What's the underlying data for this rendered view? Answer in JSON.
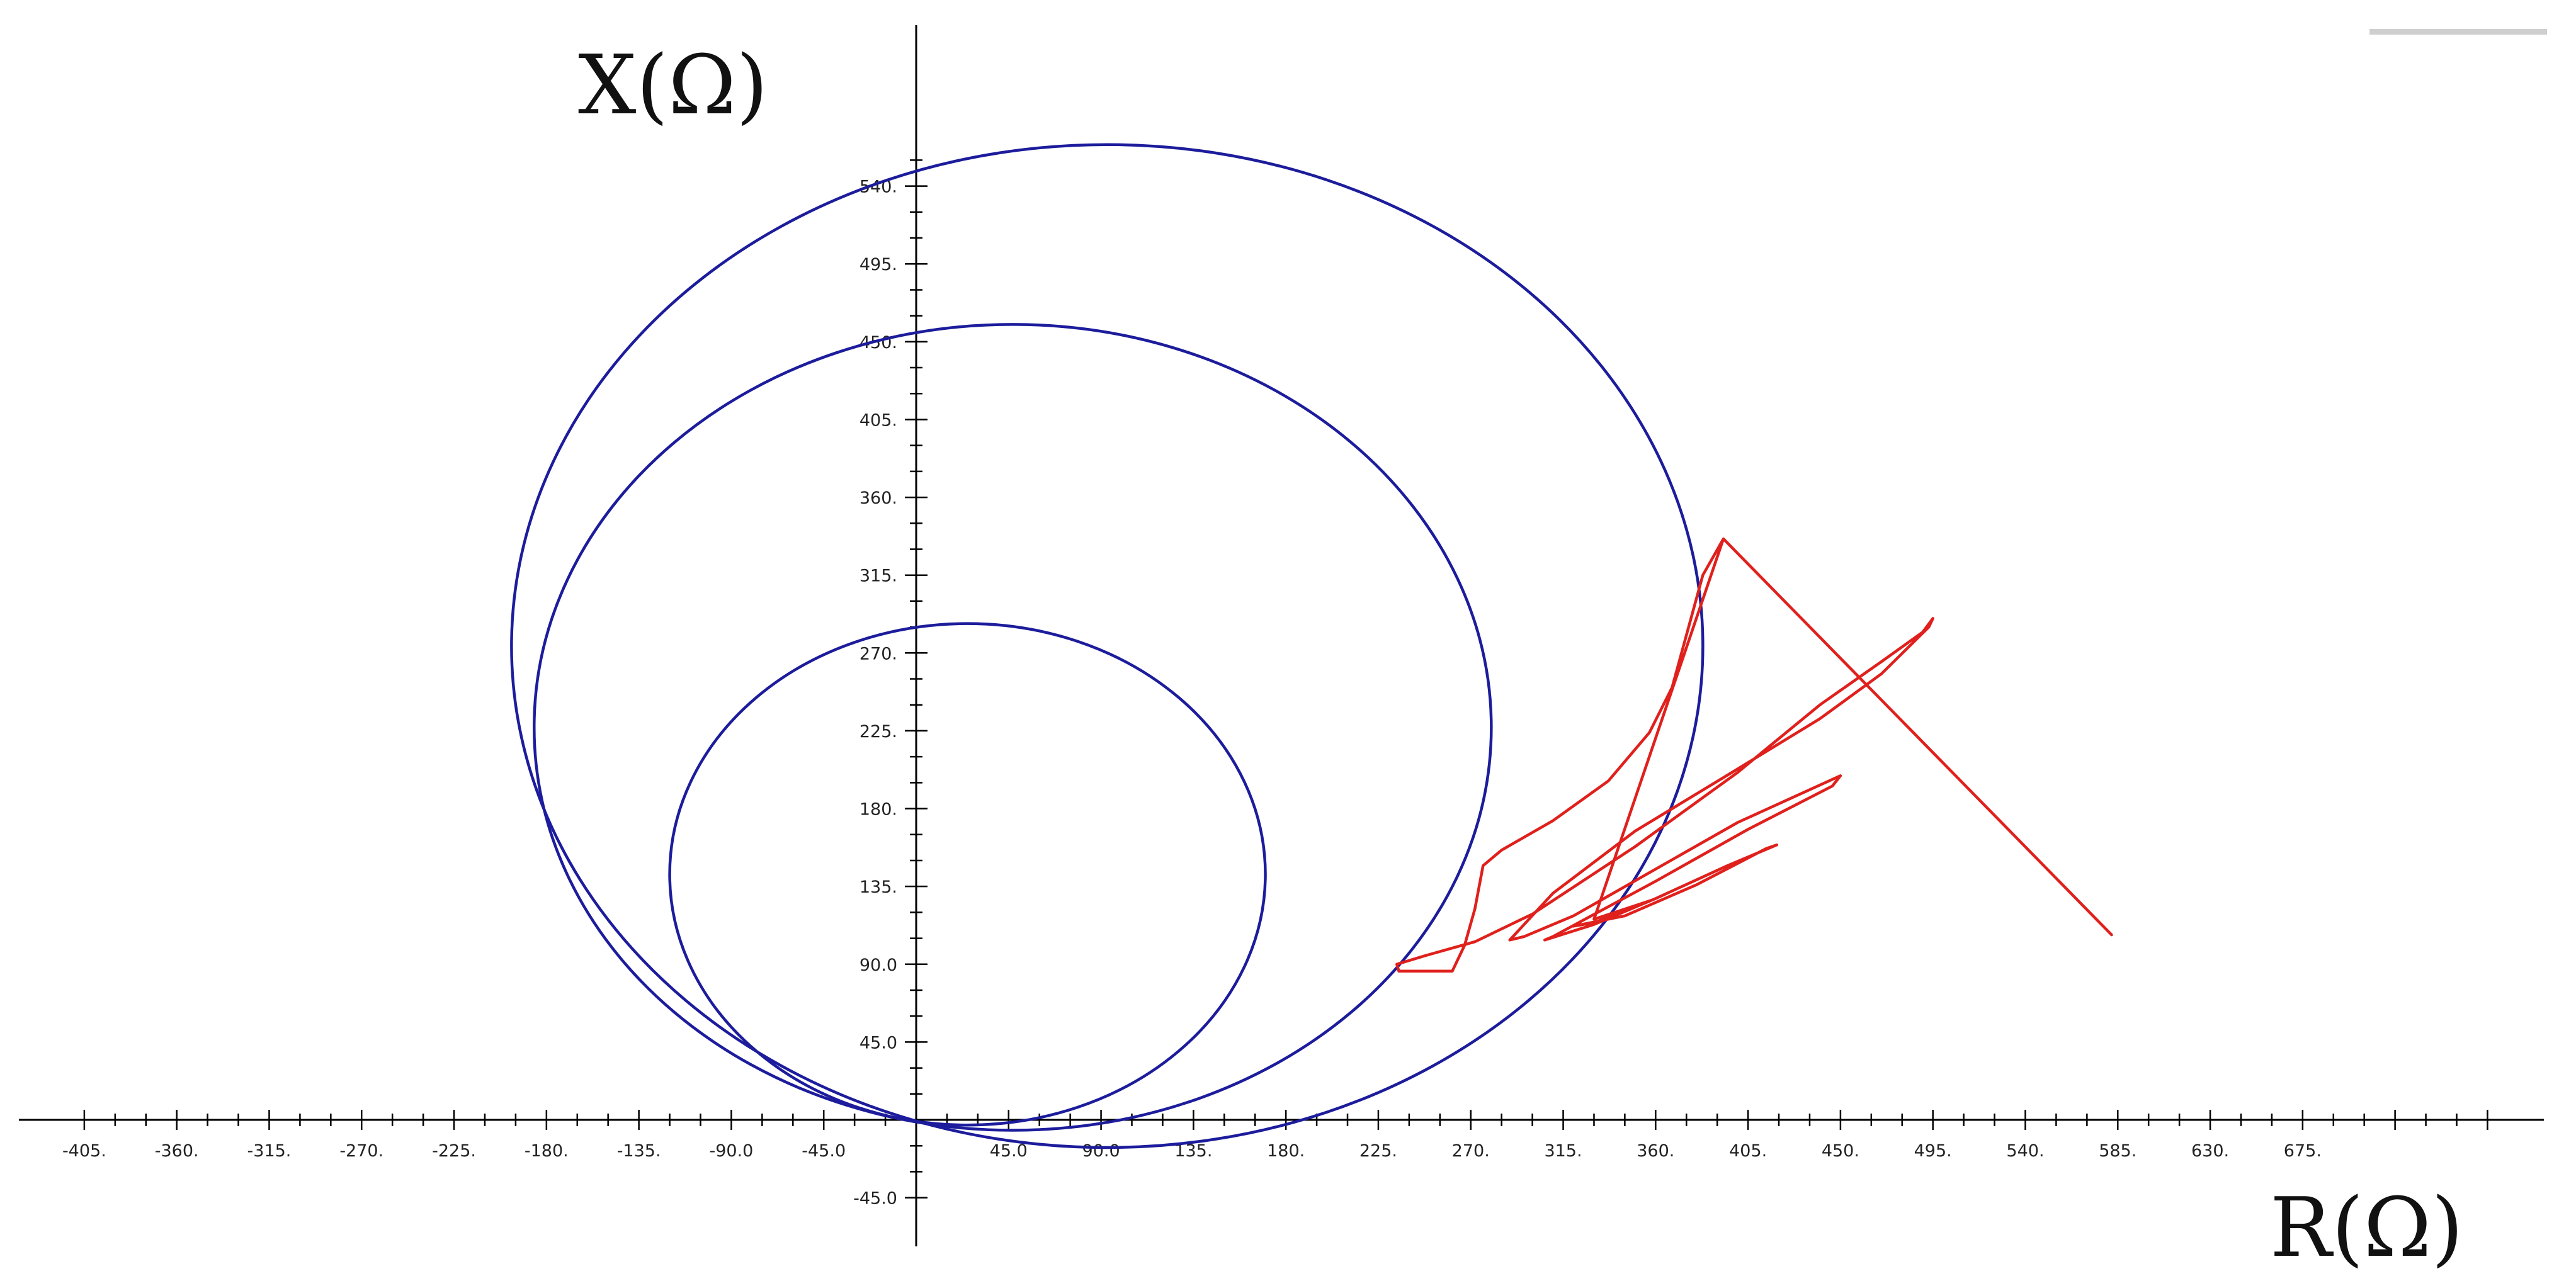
{
  "chart_data": {
    "type": "line",
    "title": "",
    "xlabel": "R(Ω)",
    "ylabel": "X(Ω)",
    "xlim": [
      -405,
      765
    ],
    "ylim": [
      -45,
      560
    ],
    "grid": false,
    "x_ticks": [
      "-405.",
      "-360.",
      "-315.",
      "-270.",
      "-225.",
      "-180.",
      "-135.",
      "-90.0",
      "-45.0",
      "45.0",
      "90.0",
      "135.",
      "180.",
      "225.",
      "270.",
      "315.",
      "360.",
      "405.",
      "450.",
      "495.",
      "540.",
      "585.",
      "630.",
      "675."
    ],
    "y_ticks": [
      "540.",
      "495.",
      "450.",
      "405.",
      "360.",
      "315.",
      "270.",
      "225.",
      "180.",
      "135.",
      "90.0",
      "45.0",
      "-45.0"
    ],
    "circles": [
      {
        "color": "#1c1c9c",
        "center": [
          25,
          142
        ],
        "radius": 145
      },
      {
        "color": "#1c1c9c",
        "center": [
          47,
          227
        ],
        "radius": 233
      },
      {
        "color": "#1c1c9c",
        "center": [
          93,
          274
        ],
        "radius": 290
      }
    ],
    "series": [
      {
        "color": "#e0201c",
        "points": [
          [
            393,
            336
          ],
          [
            383,
            315
          ],
          [
            374,
            276
          ],
          [
            368,
            250
          ],
          [
            357,
            224
          ],
          [
            337,
            196
          ],
          [
            310,
            173
          ],
          [
            285,
            156
          ],
          [
            276,
            147
          ],
          [
            272,
            122
          ],
          [
            267,
            101
          ],
          [
            261,
            86
          ],
          [
            235,
            86
          ],
          [
            234,
            90
          ],
          [
            248,
            95
          ],
          [
            272,
            103
          ],
          [
            300,
            119
          ],
          [
            350,
            158
          ],
          [
            400,
            201
          ],
          [
            440,
            240
          ],
          [
            470,
            265
          ],
          [
            490,
            282
          ],
          [
            495,
            290
          ],
          [
            493,
            285
          ],
          [
            470,
            258
          ],
          [
            440,
            232
          ],
          [
            400,
            203
          ],
          [
            350,
            167
          ],
          [
            310,
            131
          ],
          [
            289,
            104
          ],
          [
            296,
            106
          ],
          [
            320,
            118
          ],
          [
            360,
            145
          ],
          [
            400,
            172
          ],
          [
            450,
            199
          ],
          [
            446,
            193
          ],
          [
            405,
            168
          ],
          [
            360,
            138
          ],
          [
            310,
            106
          ],
          [
            306,
            104
          ],
          [
            330,
            113
          ],
          [
            360,
            128
          ],
          [
            395,
            147
          ],
          [
            419,
            159
          ],
          [
            414,
            157
          ],
          [
            380,
            136
          ],
          [
            345,
            118
          ],
          [
            320,
            112
          ],
          [
            330,
            114
          ],
          [
            358,
            127
          ],
          [
            330,
            116
          ],
          [
            393,
            336
          ],
          [
            582,
            107
          ]
        ]
      }
    ]
  }
}
